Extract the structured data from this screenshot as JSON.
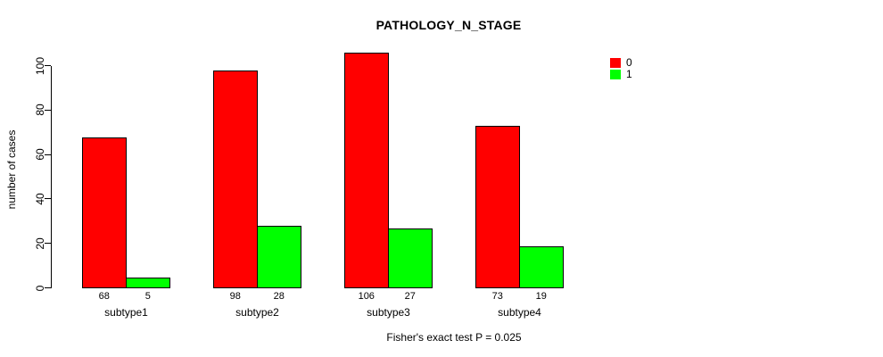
{
  "figure": {
    "title": "PATHOLOGY_N_STAGE",
    "footnote": "Fisher's exact test P = 0.025"
  },
  "chart_data": {
    "type": "bar",
    "title": "PATHOLOGY_N_STAGE",
    "categories": [
      "subtype1",
      "subtype2",
      "subtype3",
      "subtype4"
    ],
    "series": [
      {
        "name": "0",
        "color": "#FF0000",
        "values": [
          68,
          98,
          106,
          73
        ]
      },
      {
        "name": "1",
        "color": "#00FF00",
        "values": [
          5,
          28,
          27,
          19
        ]
      }
    ],
    "xlabel": "",
    "ylabel": "number of cases",
    "yticks": [
      0,
      20,
      40,
      60,
      80,
      100
    ],
    "ylim": [
      0,
      106
    ],
    "grid": false,
    "bar_value_labels": true,
    "legend_position": "top-right",
    "annotation": "Fisher's exact test P = 0.025",
    "colors": {
      "series0": "#FF0000",
      "series1": "#00FF00",
      "axis": "#000000",
      "background": "#FFFFFF"
    }
  }
}
